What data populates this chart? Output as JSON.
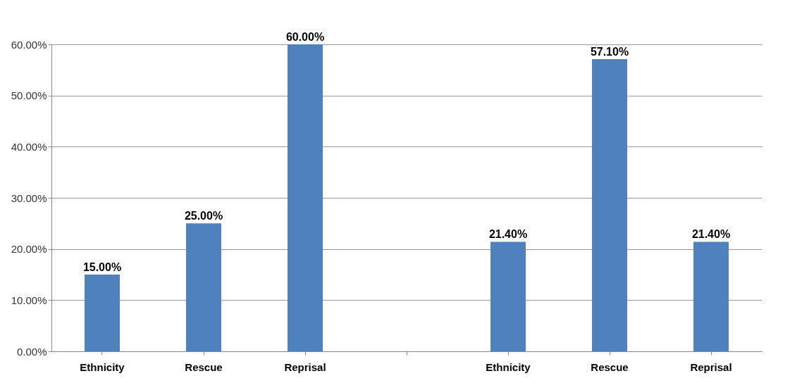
{
  "chart_data": {
    "type": "bar",
    "categories": [
      "Ethnicity",
      "Rescue",
      "Reprisal",
      null,
      "Ethnicity",
      "Rescue",
      "Reprisal"
    ],
    "values": [
      15,
      25,
      60,
      null,
      21.4,
      57.1,
      21.4
    ],
    "value_labels": [
      "15.00%",
      "25.00%",
      "60.00%",
      null,
      "21.40%",
      "57.10%",
      "21.40%"
    ],
    "color": "#4f81bd",
    "ylim": [
      0,
      60
    ],
    "yticks": [
      {
        "value": 0,
        "label": "0.00%"
      },
      {
        "value": 10,
        "label": "10.00%"
      },
      {
        "value": 20,
        "label": "20.00%"
      },
      {
        "value": 30,
        "label": "30.00%"
      },
      {
        "value": 40,
        "label": "40.00%"
      },
      {
        "value": 50,
        "label": "50.00%"
      },
      {
        "value": 60,
        "label": "60.00%"
      }
    ],
    "grid": "y"
  }
}
